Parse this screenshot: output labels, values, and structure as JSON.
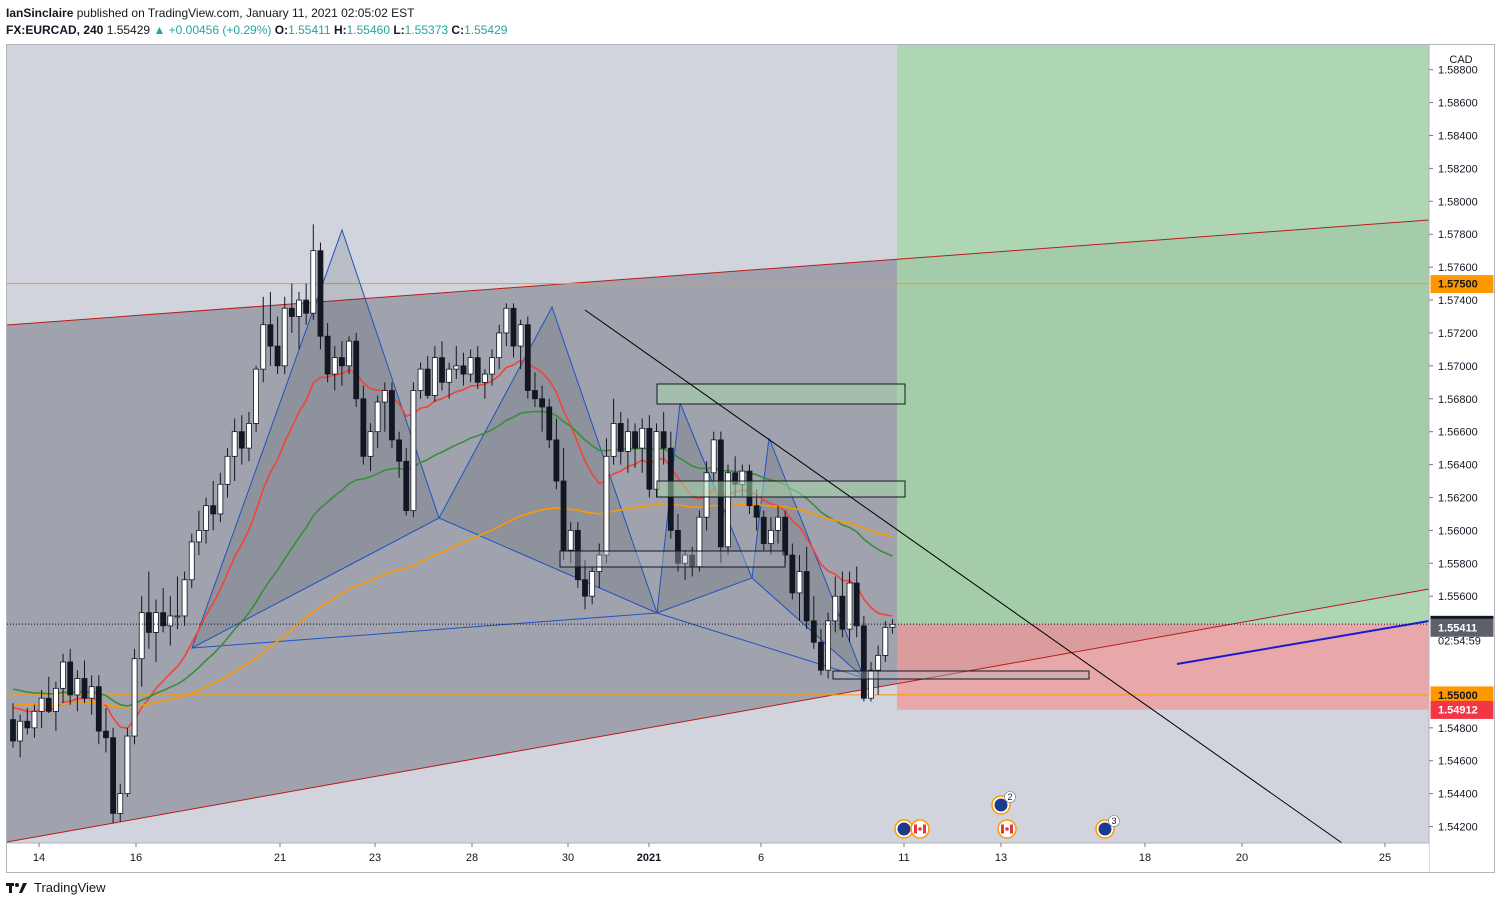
{
  "header": {
    "author": "IanSinclaire",
    "published": "published on TradingView.com, January 11, 2021 02:05:02 EST",
    "symbol": "FX:EURCAD, 240",
    "last": "1.55429",
    "change": "▲ +0.00456 (+0.29%)",
    "o_label": "O:",
    "o_val": "1.55411",
    "h_label": "H:",
    "h_val": "1.55460",
    "l_label": "L:",
    "l_val": "1.55373",
    "c_label": "C:",
    "c_val": "1.55429"
  },
  "footer": {
    "brand": "TradingView"
  },
  "colors": {
    "background": "#d1d4dc",
    "up_candle": "#ffffff",
    "down_candle": "#131722",
    "target_zone": "#a5d6a7",
    "stop_zone": "#ef9a9a",
    "channel_line": "#b71c1c",
    "horizontal_level": "#ff9800",
    "ema_fast": "#f44336",
    "ema_mid": "#388e3c",
    "ema_slow": "#ff9800",
    "harmonic": "#1e53c0",
    "trend_line": "#000000",
    "blue_line": "#1a1ad6"
  },
  "chart_data": {
    "type": "candlestick",
    "symbol": "FX:EURCAD",
    "timeframe": "240",
    "currency_label": "CAD",
    "ylim": [
      1.541,
      1.5895
    ],
    "y_ticks": [
      "1.58800",
      "1.58600",
      "1.58400",
      "1.58200",
      "1.58000",
      "1.57800",
      "1.57600",
      "1.57400",
      "1.57200",
      "1.57000",
      "1.56800",
      "1.56600",
      "1.56400",
      "1.56200",
      "1.56000",
      "1.55800",
      "1.55600",
      "1.54800",
      "1.54600",
      "1.54400",
      "1.54200"
    ],
    "x_ticks": [
      "14",
      "16",
      "21",
      "23",
      "28",
      "30",
      "2021",
      "6",
      "11",
      "13",
      "18",
      "20",
      "25"
    ],
    "price_labels": [
      {
        "text": "1.57500",
        "value": 1.575,
        "color": "#ff9800",
        "text_color": "#131722"
      },
      {
        "text": "1.55429",
        "value": 1.55429,
        "color": "#131722",
        "text_color": "#ffffff"
      },
      {
        "text": "02:54:59",
        "value": 1.5533,
        "color": "#ffffff",
        "text_color": "#131722"
      },
      {
        "text": "1.55411",
        "value": 1.55411,
        "color": "#5d606b",
        "text_color": "#ffffff"
      },
      {
        "text": "1.55000",
        "value": 1.55,
        "color": "#ff9800",
        "text_color": "#131722"
      },
      {
        "text": "1.54912",
        "value": 1.54912,
        "color": "#f23645",
        "text_color": "#ffffff"
      }
    ],
    "horizontal_levels": [
      1.575,
      1.55
    ],
    "position": {
      "entry": 1.5543,
      "target": 1.5895,
      "stop": 1.5491
    },
    "candles": [
      [
        1.5485,
        1.5495,
        1.5468,
        1.5472
      ],
      [
        1.5472,
        1.5488,
        1.5462,
        1.5484
      ],
      [
        1.5484,
        1.5492,
        1.5476,
        1.548
      ],
      [
        1.548,
        1.5494,
        1.5474,
        1.549
      ],
      [
        1.549,
        1.5503,
        1.548,
        1.5498
      ],
      [
        1.5498,
        1.5511,
        1.5489,
        1.549
      ],
      [
        1.549,
        1.5508,
        1.5478,
        1.5504
      ],
      [
        1.5504,
        1.5525,
        1.5495,
        1.552
      ],
      [
        1.552,
        1.5528,
        1.5494,
        1.55
      ],
      [
        1.55,
        1.5515,
        1.549,
        1.551
      ],
      [
        1.551,
        1.5521,
        1.5495,
        1.5498
      ],
      [
        1.5498,
        1.5512,
        1.5488,
        1.5505
      ],
      [
        1.5505,
        1.5512,
        1.547,
        1.5478
      ],
      [
        1.5478,
        1.5492,
        1.5465,
        1.5474
      ],
      [
        1.5474,
        1.548,
        1.5422,
        1.5428
      ],
      [
        1.5428,
        1.5446,
        1.5423,
        1.544
      ],
      [
        1.544,
        1.548,
        1.5438,
        1.5475
      ],
      [
        1.5475,
        1.5528,
        1.547,
        1.5522
      ],
      [
        1.5522,
        1.556,
        1.5505,
        1.555
      ],
      [
        1.555,
        1.5575,
        1.5528,
        1.5538
      ],
      [
        1.5538,
        1.5558,
        1.552,
        1.555
      ],
      [
        1.555,
        1.5565,
        1.5538,
        1.5542
      ],
      [
        1.5542,
        1.556,
        1.553,
        1.5548
      ],
      [
        1.5548,
        1.5572,
        1.554,
        1.5548
      ],
      [
        1.5548,
        1.5575,
        1.5542,
        1.557
      ],
      [
        1.557,
        1.5598,
        1.5565,
        1.5593
      ],
      [
        1.5593,
        1.5612,
        1.5585,
        1.56
      ],
      [
        1.56,
        1.562,
        1.5592,
        1.5615
      ],
      [
        1.5615,
        1.563,
        1.56,
        1.561
      ],
      [
        1.561,
        1.5635,
        1.5605,
        1.5628
      ],
      [
        1.5628,
        1.565,
        1.562,
        1.5645
      ],
      [
        1.5645,
        1.5668,
        1.563,
        1.566
      ],
      [
        1.566,
        1.567,
        1.564,
        1.565
      ],
      [
        1.565,
        1.5672,
        1.5642,
        1.5665
      ],
      [
        1.5665,
        1.57,
        1.566,
        1.5698
      ],
      [
        1.5698,
        1.5742,
        1.569,
        1.5725
      ],
      [
        1.5725,
        1.5745,
        1.57,
        1.5712
      ],
      [
        1.5712,
        1.573,
        1.5695,
        1.57
      ],
      [
        1.57,
        1.5742,
        1.5695,
        1.5735
      ],
      [
        1.5735,
        1.575,
        1.572,
        1.573
      ],
      [
        1.573,
        1.5745,
        1.571,
        1.574
      ],
      [
        1.574,
        1.575,
        1.5725,
        1.5732
      ],
      [
        1.5732,
        1.5786,
        1.5728,
        1.577
      ],
      [
        1.577,
        1.5775,
        1.571,
        1.5718
      ],
      [
        1.5718,
        1.5726,
        1.569,
        1.5695
      ],
      [
        1.5695,
        1.5712,
        1.5685,
        1.5705
      ],
      [
        1.5705,
        1.5715,
        1.5688,
        1.57
      ],
      [
        1.57,
        1.5718,
        1.5695,
        1.5715
      ],
      [
        1.5715,
        1.572,
        1.5675,
        1.568
      ],
      [
        1.568,
        1.5688,
        1.564,
        1.5645
      ],
      [
        1.5645,
        1.5665,
        1.5636,
        1.566
      ],
      [
        1.566,
        1.5682,
        1.565,
        1.5678
      ],
      [
        1.5678,
        1.569,
        1.566,
        1.5685
      ],
      [
        1.5685,
        1.569,
        1.565,
        1.5655
      ],
      [
        1.5655,
        1.566,
        1.5632,
        1.5642
      ],
      [
        1.5642,
        1.565,
        1.5609,
        1.5612
      ],
      [
        1.5612,
        1.569,
        1.5608,
        1.5685
      ],
      [
        1.5685,
        1.5702,
        1.568,
        1.5698
      ],
      [
        1.5698,
        1.5706,
        1.568,
        1.5682
      ],
      [
        1.5682,
        1.5712,
        1.5678,
        1.5705
      ],
      [
        1.5705,
        1.5715,
        1.5685,
        1.569
      ],
      [
        1.569,
        1.5702,
        1.568,
        1.5698
      ],
      [
        1.5698,
        1.5712,
        1.5692,
        1.57
      ],
      [
        1.57,
        1.5708,
        1.5688,
        1.5695
      ],
      [
        1.5695,
        1.571,
        1.569,
        1.5705
      ],
      [
        1.5705,
        1.5712,
        1.5686,
        1.569
      ],
      [
        1.569,
        1.5698,
        1.568,
        1.5695
      ],
      [
        1.5695,
        1.571,
        1.5688,
        1.5705
      ],
      [
        1.5705,
        1.5725,
        1.5698,
        1.572
      ],
      [
        1.572,
        1.5738,
        1.5712,
        1.5735
      ],
      [
        1.5735,
        1.5738,
        1.5705,
        1.5712
      ],
      [
        1.5712,
        1.5728,
        1.5698,
        1.5725
      ],
      [
        1.5725,
        1.573,
        1.568,
        1.5685
      ],
      [
        1.5685,
        1.5696,
        1.5675,
        1.568
      ],
      [
        1.568,
        1.5688,
        1.566,
        1.5675
      ],
      [
        1.5675,
        1.568,
        1.565,
        1.5655
      ],
      [
        1.5655,
        1.5668,
        1.5625,
        1.563
      ],
      [
        1.563,
        1.565,
        1.5582,
        1.5588
      ],
      [
        1.5588,
        1.5605,
        1.558,
        1.56
      ],
      [
        1.56,
        1.5605,
        1.5565,
        1.557
      ],
      [
        1.557,
        1.5582,
        1.5552,
        1.556
      ],
      [
        1.556,
        1.5578,
        1.5555,
        1.5575
      ],
      [
        1.5575,
        1.5592,
        1.5565,
        1.5585
      ],
      [
        1.5585,
        1.5656,
        1.558,
        1.5645
      ],
      [
        1.5645,
        1.568,
        1.564,
        1.5665
      ],
      [
        1.5665,
        1.5672,
        1.564,
        1.5648
      ],
      [
        1.5648,
        1.5668,
        1.5635,
        1.566
      ],
      [
        1.566,
        1.5665,
        1.5638,
        1.565
      ],
      [
        1.565,
        1.5668,
        1.5635,
        1.5662
      ],
      [
        1.5662,
        1.567,
        1.562,
        1.5625
      ],
      [
        1.5625,
        1.5665,
        1.562,
        1.566
      ],
      [
        1.566,
        1.5672,
        1.564,
        1.565
      ],
      [
        1.565,
        1.566,
        1.5595,
        1.56
      ],
      [
        1.56,
        1.561,
        1.5575,
        1.558
      ],
      [
        1.558,
        1.5588,
        1.557,
        1.5585
      ],
      [
        1.5585,
        1.559,
        1.5572,
        1.5578
      ],
      [
        1.5578,
        1.5612,
        1.5575,
        1.5608
      ],
      [
        1.5608,
        1.5642,
        1.56,
        1.5635
      ],
      [
        1.5635,
        1.566,
        1.563,
        1.5655
      ],
      [
        1.5655,
        1.566,
        1.558,
        1.559
      ],
      [
        1.559,
        1.564,
        1.5585,
        1.5635
      ],
      [
        1.5635,
        1.5645,
        1.562,
        1.5628
      ],
      [
        1.5628,
        1.564,
        1.562,
        1.5636
      ],
      [
        1.5636,
        1.564,
        1.561,
        1.5615
      ],
      [
        1.5615,
        1.5625,
        1.56,
        1.5608
      ],
      [
        1.5608,
        1.5612,
        1.5588,
        1.5592
      ],
      [
        1.5592,
        1.5608,
        1.5585,
        1.56
      ],
      [
        1.56,
        1.5615,
        1.5592,
        1.5608
      ],
      [
        1.5608,
        1.5612,
        1.558,
        1.5585
      ],
      [
        1.5585,
        1.5592,
        1.5558,
        1.5562
      ],
      [
        1.5562,
        1.5585,
        1.5545,
        1.5575
      ],
      [
        1.5575,
        1.559,
        1.554,
        1.5545
      ],
      [
        1.5545,
        1.556,
        1.5528,
        1.5532
      ],
      [
        1.5532,
        1.554,
        1.5512,
        1.5515
      ],
      [
        1.5515,
        1.555,
        1.551,
        1.5545
      ],
      [
        1.5545,
        1.5572,
        1.5538,
        1.556
      ],
      [
        1.556,
        1.5575,
        1.5535,
        1.554
      ],
      [
        1.554,
        1.5575,
        1.5532,
        1.5568
      ],
      [
        1.5568,
        1.5578,
        1.5535,
        1.5542
      ],
      [
        1.5542,
        1.5548,
        1.5496,
        1.5498
      ],
      [
        1.5498,
        1.552,
        1.5496,
        1.5515
      ],
      [
        1.5515,
        1.553,
        1.55,
        1.5524
      ],
      [
        1.5524,
        1.5545,
        1.552,
        1.5541
      ],
      [
        1.55411,
        1.5546,
        1.55373,
        1.55429
      ]
    ],
    "events": [
      {
        "x_label": "11",
        "flags": [
          "EU",
          "CA"
        ]
      },
      {
        "x_label": "13",
        "flags": [
          "EU"
        ],
        "count": "2"
      },
      {
        "x_label": "13",
        "flags": [
          "CA"
        ]
      },
      {
        "x_label": "16",
        "flags": [
          "EU"
        ],
        "count": "3"
      }
    ]
  }
}
